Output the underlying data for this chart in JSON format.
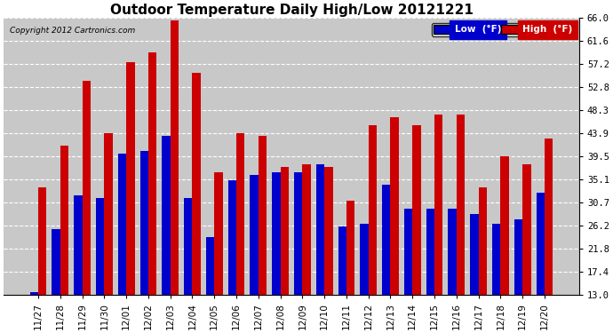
{
  "title": "Outdoor Temperature Daily High/Low 20121221",
  "copyright": "Copyright 2012 Cartronics.com",
  "legend_low": "Low  (°F)",
  "legend_high": "High  (°F)",
  "categories": [
    "11/27",
    "11/28",
    "11/29",
    "11/30",
    "12/01",
    "12/02",
    "12/03",
    "12/04",
    "12/05",
    "12/06",
    "12/07",
    "12/08",
    "12/09",
    "12/10",
    "12/11",
    "12/12",
    "12/13",
    "12/14",
    "12/15",
    "12/16",
    "12/17",
    "12/18",
    "12/19",
    "12/20"
  ],
  "low_values": [
    13.5,
    25.5,
    32.0,
    31.5,
    40.0,
    40.5,
    43.5,
    31.5,
    24.0,
    35.0,
    36.0,
    36.5,
    36.5,
    38.0,
    26.0,
    26.5,
    34.0,
    29.5,
    29.5,
    29.5,
    28.5,
    26.5,
    27.5,
    32.5
  ],
  "high_values": [
    33.5,
    41.5,
    54.0,
    44.0,
    57.5,
    59.5,
    65.5,
    55.5,
    36.5,
    44.0,
    43.5,
    37.5,
    38.0,
    37.5,
    31.0,
    45.5,
    47.0,
    45.5,
    47.5,
    47.5,
    33.5,
    39.5,
    38.0,
    43.0
  ],
  "ylim": [
    13.0,
    66.0
  ],
  "yticks": [
    13.0,
    17.4,
    21.8,
    26.2,
    30.7,
    35.1,
    39.5,
    43.9,
    48.3,
    52.8,
    57.2,
    61.6,
    66.0
  ],
  "low_color": "#0000cc",
  "high_color": "#cc0000",
  "bg_color": "#ffffff",
  "plot_bg_color": "#c8c8c8",
  "title_fontsize": 11,
  "tick_fontsize": 7.5,
  "bar_width": 0.38
}
